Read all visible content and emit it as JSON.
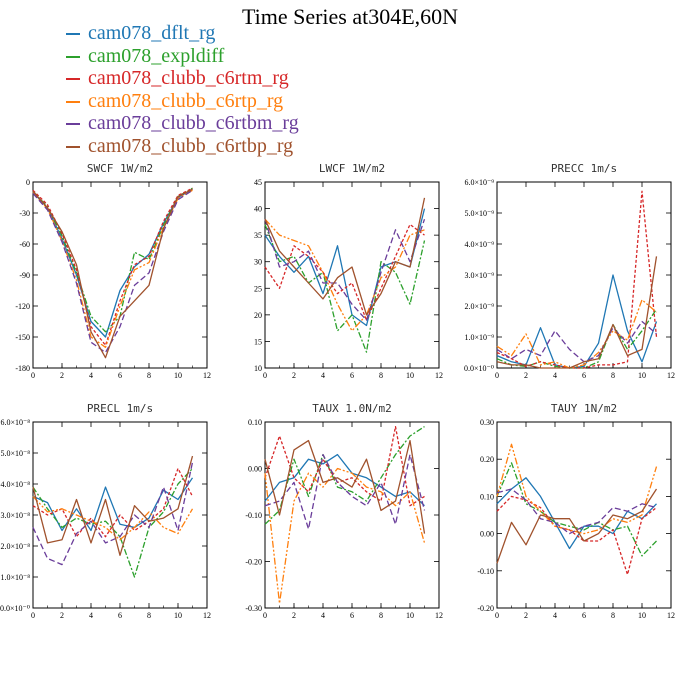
{
  "title": "Time Series at304E,60N",
  "legend": [
    {
      "label": "cam078_dflt_rg",
      "color": "#1f77b4"
    },
    {
      "label": "cam078_expldiff",
      "color": "#2ca02c"
    },
    {
      "label": "cam078_clubb_c6rtm_rg",
      "color": "#d62728"
    },
    {
      "label": "cam078_clubb_c6rtp_rg",
      "color": "#ff7f0e"
    },
    {
      "label": "cam078_clubb_c6rtbm_rg",
      "color": "#6a3d9a"
    },
    {
      "label": "cam078_clubb_c6rtbp_rg",
      "color": "#a0522d"
    }
  ],
  "chart_data": [
    {
      "type": "line",
      "title": "SWCF   1W/m2",
      "x": [
        0,
        1,
        2,
        3,
        4,
        5,
        6,
        7,
        8,
        9,
        10,
        11
      ],
      "xlim": [
        0,
        12
      ],
      "xticks": [
        "0",
        "2",
        "4",
        "6",
        "8",
        "10",
        "12"
      ],
      "ylim": [
        -180,
        0
      ],
      "yticks": [
        "0",
        "-30",
        "-60",
        "-90",
        "-120",
        "-150",
        "-180"
      ],
      "series": [
        {
          "values": [
            -10,
            -25,
            -55,
            -90,
            -135,
            -150,
            -105,
            -82,
            -70,
            -40,
            -15,
            -7
          ]
        },
        {
          "values": [
            -9,
            -24,
            -52,
            -88,
            -130,
            -145,
            -130,
            -68,
            -75,
            -42,
            -14,
            -6
          ]
        },
        {
          "values": [
            -8,
            -22,
            -50,
            -85,
            -140,
            -158,
            -115,
            -80,
            -72,
            -38,
            -13,
            -6
          ]
        },
        {
          "values": [
            -10,
            -26,
            -57,
            -95,
            -150,
            -160,
            -120,
            -85,
            -78,
            -44,
            -16,
            -8
          ]
        },
        {
          "values": [
            -11,
            -27,
            -58,
            -98,
            -155,
            -165,
            -140,
            -100,
            -88,
            -48,
            -17,
            -8
          ]
        },
        {
          "values": [
            -9,
            -25,
            -48,
            -80,
            -145,
            -170,
            -130,
            -115,
            -100,
            -45,
            -14,
            -7
          ]
        }
      ]
    },
    {
      "type": "line",
      "title": "LWCF   1W/m2",
      "x": [
        0,
        1,
        2,
        3,
        4,
        5,
        6,
        7,
        8,
        9,
        10,
        11
      ],
      "xlim": [
        0,
        12
      ],
      "xticks": [
        "0",
        "2",
        "4",
        "6",
        "8",
        "10",
        "12"
      ],
      "ylim": [
        10,
        45
      ],
      "yticks": [
        "45",
        "40",
        "35",
        "30",
        "25",
        "20",
        "15",
        "10"
      ],
      "series": [
        {
          "values": [
            35,
            31,
            28,
            31,
            24,
            33,
            20,
            18,
            29,
            30,
            29,
            40
          ]
        },
        {
          "values": [
            37,
            30,
            31,
            26,
            28,
            17,
            20,
            13,
            30,
            28,
            22,
            34
          ]
        },
        {
          "values": [
            29,
            25,
            33,
            31,
            28,
            24,
            26,
            19,
            25,
            31,
            37,
            35
          ]
        },
        {
          "values": [
            38,
            35,
            34,
            33,
            28,
            22,
            17,
            20,
            27,
            29,
            35,
            36
          ]
        },
        {
          "values": [
            38,
            29,
            30,
            32,
            26,
            26,
            22,
            19,
            28,
            36,
            30,
            38
          ]
        },
        {
          "values": [
            38,
            32,
            29,
            26,
            23,
            27,
            29,
            20,
            24,
            30,
            29,
            42
          ]
        }
      ]
    },
    {
      "type": "line",
      "title": "PRECC   1m/s",
      "x": [
        0,
        1,
        2,
        3,
        4,
        5,
        6,
        7,
        8,
        9,
        10,
        11
      ],
      "xlim": [
        0,
        12
      ],
      "xticks": [
        "0",
        "2",
        "4",
        "6",
        "8",
        "10",
        "12"
      ],
      "ylim": [
        0,
        6e-09
      ],
      "yticks": [
        "6.0×10⁻⁹",
        "5.0×10⁻⁹",
        "4.0×10⁻⁹",
        "3.0×10⁻⁹",
        "2.0×10⁻⁹",
        "1.0×10⁻⁹",
        "0.0×10⁻⁰"
      ],
      "series": [
        {
          "values": [
            4e-10,
            2e-10,
            1e-10,
            1.3e-09,
            1e-10,
            0,
            5e-11,
            8e-10,
            3e-09,
            1.2e-09,
            2e-10,
            1.5e-09
          ]
        },
        {
          "values": [
            3e-10,
            1e-10,
            5e-11,
            2e-10,
            5e-11,
            0,
            0,
            2e-10,
            1.4e-09,
            6e-10,
            1.2e-09,
            1.9e-09
          ]
        },
        {
          "values": [
            5e-10,
            3e-10,
            5e-11,
            2e-10,
            1e-10,
            0,
            0,
            1e-10,
            1e-10,
            2e-10,
            5.7e-09,
            1e-09
          ]
        },
        {
          "values": [
            7e-10,
            4e-10,
            1.1e-09,
            1e-10,
            2e-10,
            0,
            1e-10,
            5e-10,
            1.2e-09,
            9e-10,
            2.2e-09,
            1.8e-09
          ]
        },
        {
          "values": [
            6e-10,
            3e-10,
            6e-10,
            4e-10,
            1.2e-09,
            6e-10,
            2e-10,
            4e-10,
            1.3e-09,
            8e-10,
            1.5e-09,
            1.1e-09
          ]
        },
        {
          "values": [
            2e-10,
            1e-10,
            1e-10,
            0,
            0,
            0,
            2e-10,
            3e-10,
            1.4e-09,
            4e-10,
            6e-10,
            3.6e-09
          ]
        }
      ]
    },
    {
      "type": "line",
      "title": "PRECL   1m/s",
      "x": [
        0,
        1,
        2,
        3,
        4,
        5,
        6,
        7,
        8,
        9,
        10,
        11
      ],
      "xlim": [
        0,
        12
      ],
      "xticks": [
        "0",
        "2",
        "4",
        "6",
        "8",
        "10",
        "12"
      ],
      "ylim": [
        0,
        6e-08
      ],
      "yticks": [
        "6.0×10⁻⁸",
        "5.0×10⁻⁸",
        "4.0×10⁻⁸",
        "3.0×10⁻⁸",
        "2.0×10⁻⁸",
        "1.0×10⁻⁸",
        "0.0×10⁻⁰"
      ],
      "series": [
        {
          "values": [
            3.6e-08,
            3.4e-08,
            2.5e-08,
            3.2e-08,
            2.5e-08,
            3.9e-08,
            2.7e-08,
            2.6e-08,
            2.9e-08,
            3.8e-08,
            3.5e-08,
            4.2e-08
          ]
        },
        {
          "values": [
            3.9e-08,
            3.2e-08,
            2.6e-08,
            2.9e-08,
            2.7e-08,
            2.8e-08,
            2.3e-08,
            1e-08,
            2.6e-08,
            3.1e-08,
            4e-08,
            4.5e-08
          ]
        },
        {
          "values": [
            3.3e-08,
            3e-08,
            3.2e-08,
            2.3e-08,
            2.9e-08,
            2.3e-08,
            3e-08,
            2.5e-08,
            2.8e-08,
            3.2e-08,
            4.5e-08,
            3.6e-08
          ]
        },
        {
          "values": [
            3.6e-08,
            3.1e-08,
            3.2e-08,
            3e-08,
            2.8e-08,
            2.6e-08,
            2.2e-08,
            2.6e-08,
            3.1e-08,
            2.6e-08,
            2.4e-08,
            3.2e-08
          ]
        },
        {
          "values": [
            2.6e-08,
            1.6e-08,
            1.4e-08,
            2.4e-08,
            2.8e-08,
            2.1e-08,
            2.3e-08,
            3e-08,
            2.6e-08,
            3.9e-08,
            2.5e-08,
            4.7e-08
          ]
        },
        {
          "values": [
            3.9e-08,
            2.1e-08,
            2.2e-08,
            3.5e-08,
            2.1e-08,
            3.5e-08,
            1.7e-08,
            3.3e-08,
            2.8e-08,
            2.9e-08,
            3.2e-08,
            4.9e-08
          ]
        }
      ]
    },
    {
      "type": "line",
      "title": "TAUX   1.0N/m2",
      "x": [
        0,
        1,
        2,
        3,
        4,
        5,
        6,
        7,
        8,
        9,
        10,
        11
      ],
      "xlim": [
        0,
        12
      ],
      "xticks": [
        "0",
        "2",
        "4",
        "6",
        "8",
        "10",
        "12"
      ],
      "ylim": [
        -0.3,
        0.1
      ],
      "yticks": [
        "0.10",
        "0.00",
        "-0.10",
        "-0.20",
        "-0.30"
      ],
      "series": [
        {
          "values": [
            -0.07,
            -0.03,
            -0.02,
            0.02,
            0.01,
            0.03,
            -0.01,
            -0.02,
            -0.04,
            -0.06,
            -0.05,
            -0.08
          ]
        },
        {
          "values": [
            -0.12,
            -0.09,
            0.02,
            -0.06,
            0.03,
            -0.04,
            -0.05,
            -0.07,
            -0.02,
            0.03,
            0.07,
            0.09
          ]
        },
        {
          "values": [
            -0.02,
            0.07,
            -0.02,
            -0.05,
            0.02,
            -0.03,
            -0.02,
            -0.05,
            -0.07,
            0.09,
            -0.08,
            -0.06
          ]
        },
        {
          "values": [
            -0.01,
            -0.29,
            -0.07,
            -0.01,
            -0.04,
            0.0,
            -0.01,
            -0.04,
            -0.05,
            -0.08,
            -0.05,
            -0.16
          ]
        },
        {
          "values": [
            -0.08,
            -0.07,
            -0.03,
            -0.13,
            0.03,
            -0.03,
            -0.06,
            -0.08,
            -0.03,
            -0.12,
            0.03,
            -0.09
          ]
        },
        {
          "values": [
            0.02,
            -0.1,
            0.04,
            0.06,
            -0.03,
            -0.02,
            -0.04,
            0.02,
            -0.09,
            -0.07,
            0.06,
            -0.14
          ]
        }
      ]
    },
    {
      "type": "line",
      "title": "TAUY   1N/m2",
      "x": [
        0,
        1,
        2,
        3,
        4,
        5,
        6,
        7,
        8,
        9,
        10,
        11
      ],
      "xlim": [
        0,
        12
      ],
      "xticks": [
        "0",
        "2",
        "4",
        "6",
        "8",
        "10",
        "12"
      ],
      "ylim": [
        -0.2,
        0.3
      ],
      "yticks": [
        "0.30",
        "0.20",
        "0.10",
        "0.00",
        "-0.10",
        "-0.20"
      ],
      "series": [
        {
          "values": [
            0.08,
            0.12,
            0.15,
            0.1,
            0.03,
            -0.04,
            0.02,
            0.02,
            0.0,
            0.06,
            0.04,
            0.08
          ]
        },
        {
          "values": [
            0.1,
            0.19,
            0.08,
            0.06,
            0.03,
            0.02,
            0.01,
            0.03,
            0.01,
            0.02,
            -0.06,
            -0.02
          ]
        },
        {
          "values": [
            0.06,
            0.1,
            0.09,
            0.07,
            0.02,
            0.01,
            -0.02,
            -0.02,
            0.01,
            -0.11,
            0.04,
            0.07
          ]
        },
        {
          "values": [
            0.1,
            0.24,
            0.1,
            0.06,
            0.02,
            0.01,
            0.0,
            0.01,
            0.04,
            0.03,
            0.05,
            0.18
          ]
        },
        {
          "values": [
            0.11,
            0.12,
            0.09,
            0.04,
            0.03,
            0.0,
            0.02,
            0.03,
            0.07,
            0.06,
            0.08,
            0.07
          ]
        },
        {
          "values": [
            -0.08,
            0.03,
            -0.03,
            0.05,
            0.04,
            0.04,
            -0.02,
            0.0,
            0.05,
            0.04,
            0.06,
            0.12
          ]
        }
      ]
    }
  ]
}
